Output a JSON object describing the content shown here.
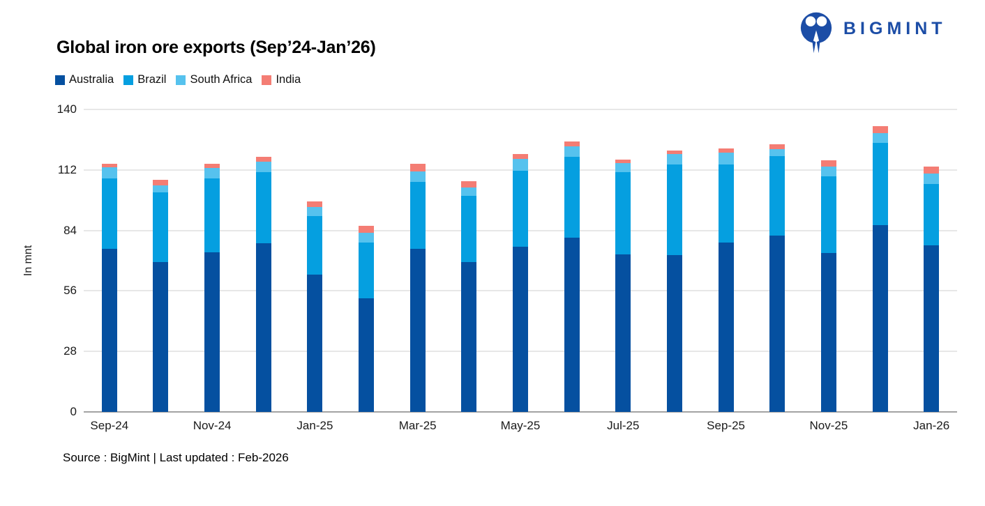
{
  "logo": {
    "text": "BIGMINT",
    "color": "#1c4da6",
    "icon": "bigmint-people-m-icon"
  },
  "source_note": "Source : BigMint | Last updated : Feb-2026",
  "chart_data": {
    "type": "bar",
    "stacked": true,
    "title": "Global iron ore exports (Sep’24-Jan’26)",
    "xlabel": "",
    "ylabel": "In mnt",
    "unit": "mnt",
    "ylim": [
      0,
      140
    ],
    "ytick_step": 28,
    "ytick_labels": [
      "0",
      "28",
      "56",
      "84",
      "112",
      "140"
    ],
    "xtick_step": 2,
    "grid": "horizontal",
    "legend_position": "top-left",
    "categories": [
      "Sep-24",
      "Oct-24",
      "Nov-24",
      "Dec-24",
      "Jan-25",
      "Feb-25",
      "Mar-25",
      "Apr-25",
      "May-25",
      "Jun-25",
      "Jul-25",
      "Aug-25",
      "Sep-25",
      "Oct-25",
      "Nov-25",
      "Dec-25",
      "Jan-26"
    ],
    "visible_xtick_labels": [
      "Sep-24",
      "Nov-24",
      "Jan-25",
      "Mar-25",
      "May-25",
      "Jul-25",
      "Sep-25",
      "Nov-25",
      "Jan-26"
    ],
    "series": [
      {
        "name": "Australia",
        "color": "#0550a0",
        "values": [
          75.5,
          69.5,
          74.0,
          78.0,
          63.5,
          52.5,
          75.5,
          69.5,
          76.5,
          80.5,
          73.0,
          72.5,
          78.5,
          81.5,
          73.5,
          86.4,
          77.0
        ]
      },
      {
        "name": "Brazil",
        "color": "#059fe0",
        "values": [
          32.5,
          32.0,
          34.0,
          33.0,
          27.0,
          26.0,
          31.0,
          30.5,
          35.0,
          37.5,
          38.0,
          42.0,
          36.0,
          37.0,
          35.5,
          38.0,
          28.5
        ]
      },
      {
        "name": "South Africa",
        "color": "#56c2ee",
        "values": [
          5.3,
          3.2,
          4.8,
          4.8,
          4.5,
          4.5,
          4.8,
          3.9,
          5.5,
          5.0,
          4.2,
          5.0,
          5.4,
          3.0,
          4.4,
          4.8,
          4.8
        ]
      },
      {
        "name": "India",
        "color": "#f47d74",
        "values": [
          1.6,
          2.8,
          1.9,
          2.4,
          2.5,
          3.1,
          3.4,
          2.9,
          2.4,
          2.1,
          1.7,
          1.4,
          1.9,
          2.5,
          3.1,
          3.2,
          3.3
        ]
      }
    ]
  }
}
